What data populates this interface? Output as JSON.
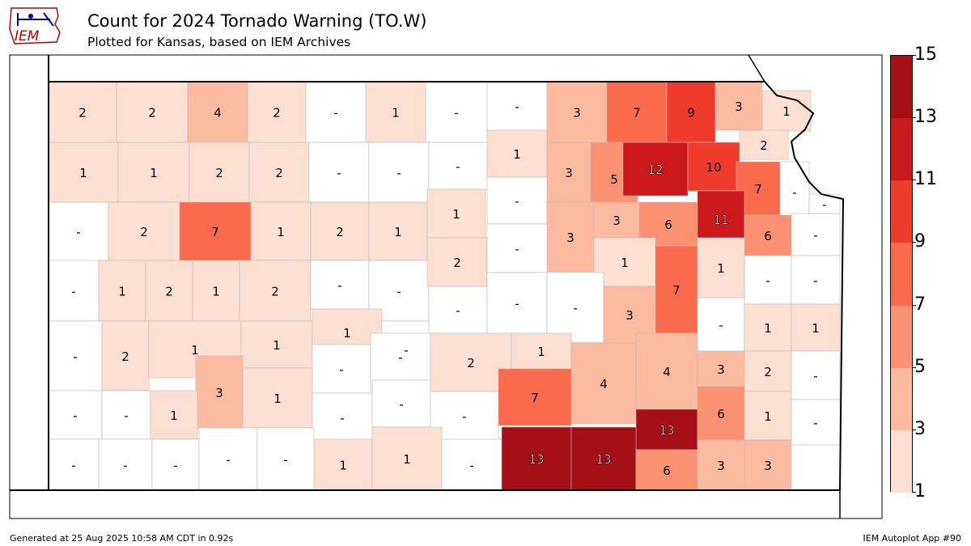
{
  "header": {
    "title": "Count for 2024 Tornado Warning (TO.W)",
    "subtitle": "Plotted for Kansas, based on IEM Archives",
    "logo_text": "IEM"
  },
  "footer": {
    "generated": "Generated at 25 Aug 2025 10:58 AM CDT in 0.92s",
    "app": "IEM Autoplot App #90"
  },
  "colorbar": {
    "ticks": [
      "15",
      "13",
      "11",
      "9",
      "7",
      "5",
      "3",
      "1"
    ],
    "bins": [
      {
        "min": 1,
        "max": 3,
        "color": "#fee0d2"
      },
      {
        "min": 3,
        "max": 5,
        "color": "#fcbba1"
      },
      {
        "min": 5,
        "max": 7,
        "color": "#fc9272"
      },
      {
        "min": 7,
        "max": 9,
        "color": "#fb6a4a"
      },
      {
        "min": 9,
        "max": 11,
        "color": "#ef3b2c"
      },
      {
        "min": 11,
        "max": 13,
        "color": "#cb181d"
      },
      {
        "min": 13,
        "max": 15,
        "color": "#a50f15"
      }
    ]
  },
  "map": {
    "state": "Kansas",
    "counties": [
      {
        "label": "2"
      },
      {
        "label": "2"
      },
      {
        "label": "4"
      },
      {
        "label": "2"
      },
      {
        "label": "-"
      },
      {
        "label": "1"
      },
      {
        "label": "-"
      },
      {
        "label": "-"
      },
      {
        "label": "3"
      },
      {
        "label": "7"
      },
      {
        "label": "9"
      },
      {
        "label": "3"
      },
      {
        "label": "1"
      },
      {
        "label": "1"
      },
      {
        "label": "1"
      },
      {
        "label": "2"
      },
      {
        "label": "2"
      },
      {
        "label": "-"
      },
      {
        "label": "-"
      },
      {
        "label": "-"
      },
      {
        "label": "1"
      },
      {
        "label": "3"
      },
      {
        "label": "5"
      },
      {
        "label": "12"
      },
      {
        "label": "10"
      },
      {
        "label": "2"
      },
      {
        "label": "7"
      },
      {
        "label": "-"
      },
      {
        "label": "-"
      },
      {
        "label": "2"
      },
      {
        "label": "7"
      },
      {
        "label": "1"
      },
      {
        "label": "2"
      },
      {
        "label": "1"
      },
      {
        "label": "1"
      },
      {
        "label": "-"
      },
      {
        "label": "3"
      },
      {
        "label": "3"
      },
      {
        "label": "6"
      },
      {
        "label": "11"
      },
      {
        "label": "6"
      },
      {
        "label": "-"
      },
      {
        "label": "-"
      },
      {
        "label": "-"
      },
      {
        "label": "1"
      },
      {
        "label": "2"
      },
      {
        "label": "1"
      },
      {
        "label": "2"
      },
      {
        "label": "-"
      },
      {
        "label": "-"
      },
      {
        "label": "2"
      },
      {
        "label": "-"
      },
      {
        "label": "1"
      },
      {
        "label": "7"
      },
      {
        "label": "1"
      },
      {
        "label": "-"
      },
      {
        "label": "-"
      },
      {
        "label": "-"
      },
      {
        "label": "2"
      },
      {
        "label": "1"
      },
      {
        "label": "1"
      },
      {
        "label": "1"
      },
      {
        "label": "-"
      },
      {
        "label": "-"
      },
      {
        "label": "-"
      },
      {
        "label": "-"
      },
      {
        "label": "3"
      },
      {
        "label": "-"
      },
      {
        "label": "1"
      },
      {
        "label": "1"
      },
      {
        "label": "3"
      },
      {
        "label": "-"
      },
      {
        "label": "-"
      },
      {
        "label": "2"
      },
      {
        "label": "1"
      },
      {
        "label": "4"
      },
      {
        "label": "4"
      },
      {
        "label": "3"
      },
      {
        "label": "2"
      },
      {
        "label": "-"
      },
      {
        "label": "-"
      },
      {
        "label": "-"
      },
      {
        "label": "1"
      },
      {
        "label": "1"
      },
      {
        "label": "-"
      },
      {
        "label": "-"
      },
      {
        "label": "-"
      },
      {
        "label": "7"
      },
      {
        "label": "13"
      },
      {
        "label": "6"
      },
      {
        "label": "1"
      },
      {
        "label": "-"
      },
      {
        "label": "-"
      },
      {
        "label": "-"
      },
      {
        "label": "-"
      },
      {
        "label": "-"
      },
      {
        "label": "-"
      },
      {
        "label": "1"
      },
      {
        "label": "1"
      },
      {
        "label": "-"
      },
      {
        "label": "13"
      },
      {
        "label": "13"
      },
      {
        "label": "6"
      },
      {
        "label": "3"
      },
      {
        "label": "3"
      }
    ]
  }
}
